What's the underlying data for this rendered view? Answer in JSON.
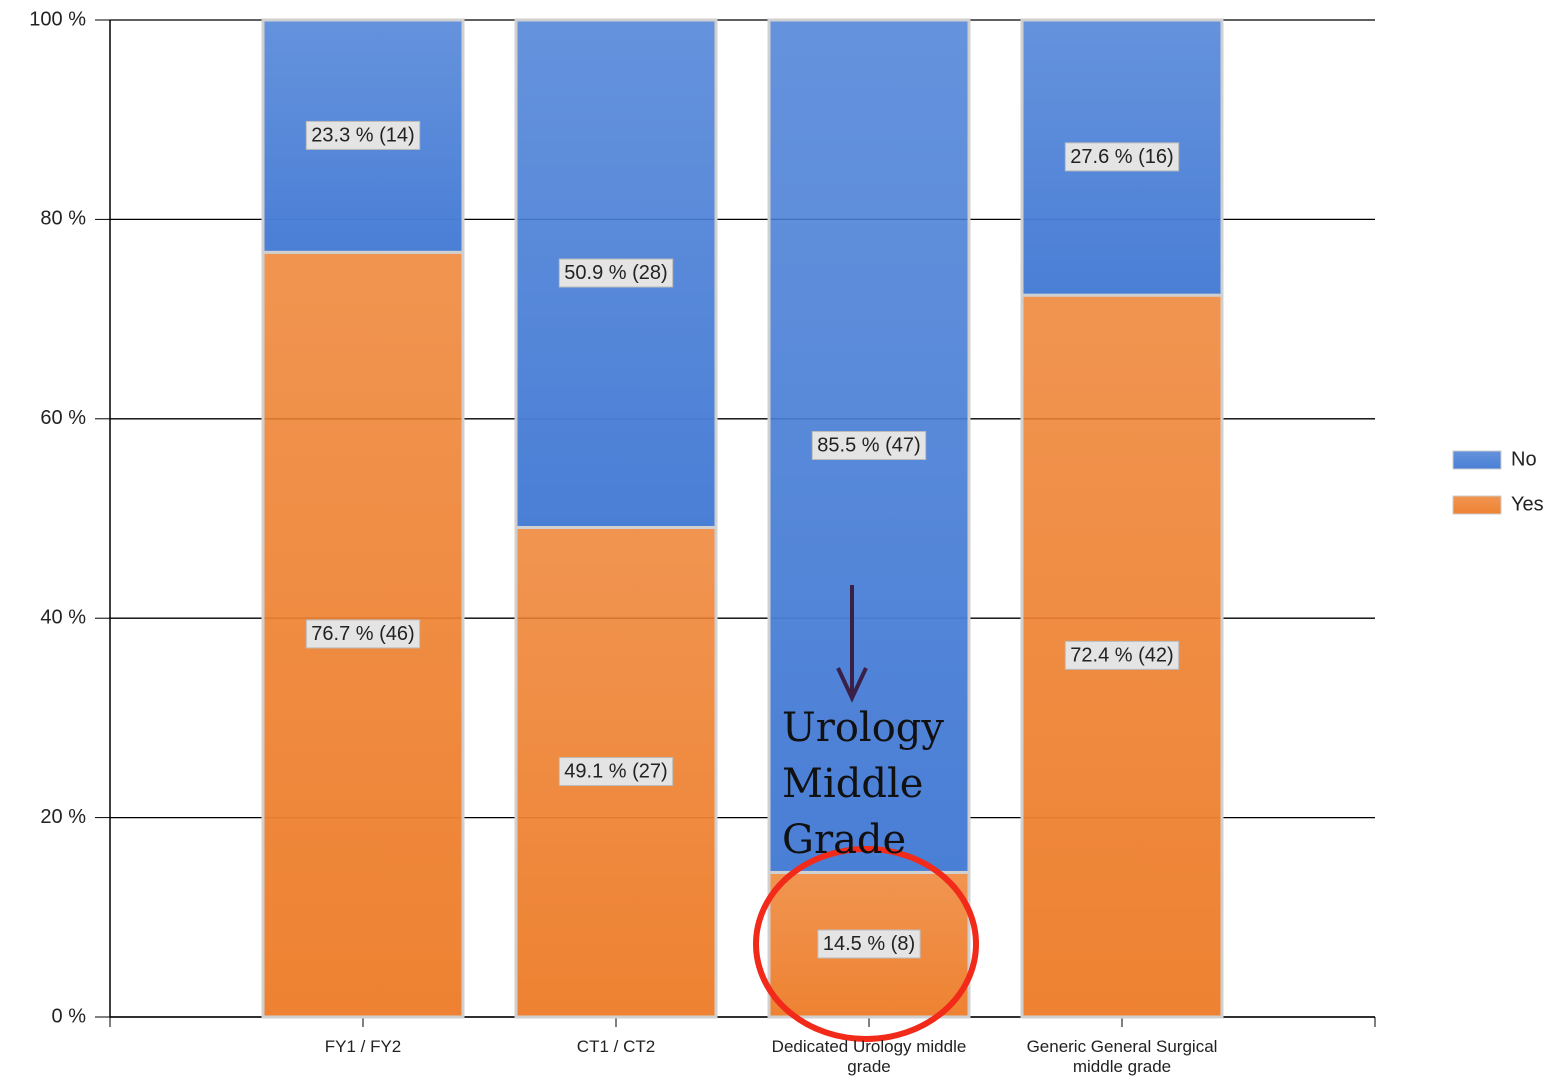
{
  "chart_data": {
    "type": "stacked_bar",
    "categories": [
      "FY1 / FY2",
      "CT1 / CT2",
      "Dedicated Urology middle grade",
      "Generic General Surgical middle grade"
    ],
    "series": [
      {
        "name": "Yes",
        "color": "#ee8232",
        "values": [
          76.7,
          49.1,
          14.5,
          72.4
        ],
        "value_labels": [
          "76.7 % (46)",
          "49.1 % (27)",
          "14.5 % (8)",
          "72.4 % (42)"
        ]
      },
      {
        "name": "No",
        "color": "#4a7fd6",
        "values": [
          23.3,
          50.9,
          85.5,
          27.6
        ],
        "value_labels": [
          "23.3 % (14)",
          "50.9 % (28)",
          "85.5 % (47)",
          "27.6 % (16)"
        ]
      }
    ],
    "ylim": [
      0,
      100
    ],
    "yticks": [
      {
        "value": 0,
        "label": "0 %"
      },
      {
        "value": 20,
        "label": "20 %"
      },
      {
        "value": 40,
        "label": "40 %"
      },
      {
        "value": 60,
        "label": "60 %"
      },
      {
        "value": 80,
        "label": "80 %"
      },
      {
        "value": 100,
        "label": "100 %"
      }
    ],
    "grid": true,
    "legend": "right",
    "annotation": "Urology Middle Grade"
  }
}
